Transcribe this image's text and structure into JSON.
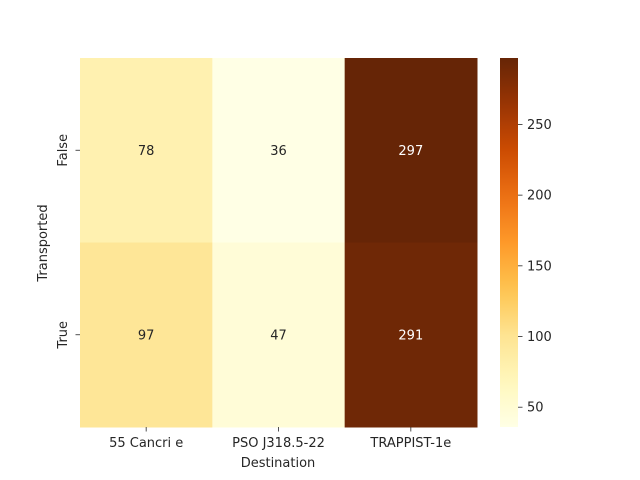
{
  "chart_data": {
    "type": "heatmap",
    "xlabel": "Destination",
    "ylabel": "Transported",
    "x_categories": [
      "55 Cancri e",
      "PSO J318.5-22",
      "TRAPPIST-1e"
    ],
    "y_categories": [
      "False",
      "True"
    ],
    "values": [
      [
        78,
        36,
        297
      ],
      [
        97,
        47,
        291
      ]
    ],
    "colorbar": {
      "vmin": 36,
      "vmax": 297,
      "ticks": [
        50,
        100,
        150,
        200,
        250
      ],
      "colormap": "YlOrBr",
      "stops": [
        "#ffffe5",
        "#fff7bc",
        "#fee391",
        "#fec44f",
        "#fe9929",
        "#ec7014",
        "#cc4c02",
        "#993404",
        "#662506"
      ]
    }
  }
}
